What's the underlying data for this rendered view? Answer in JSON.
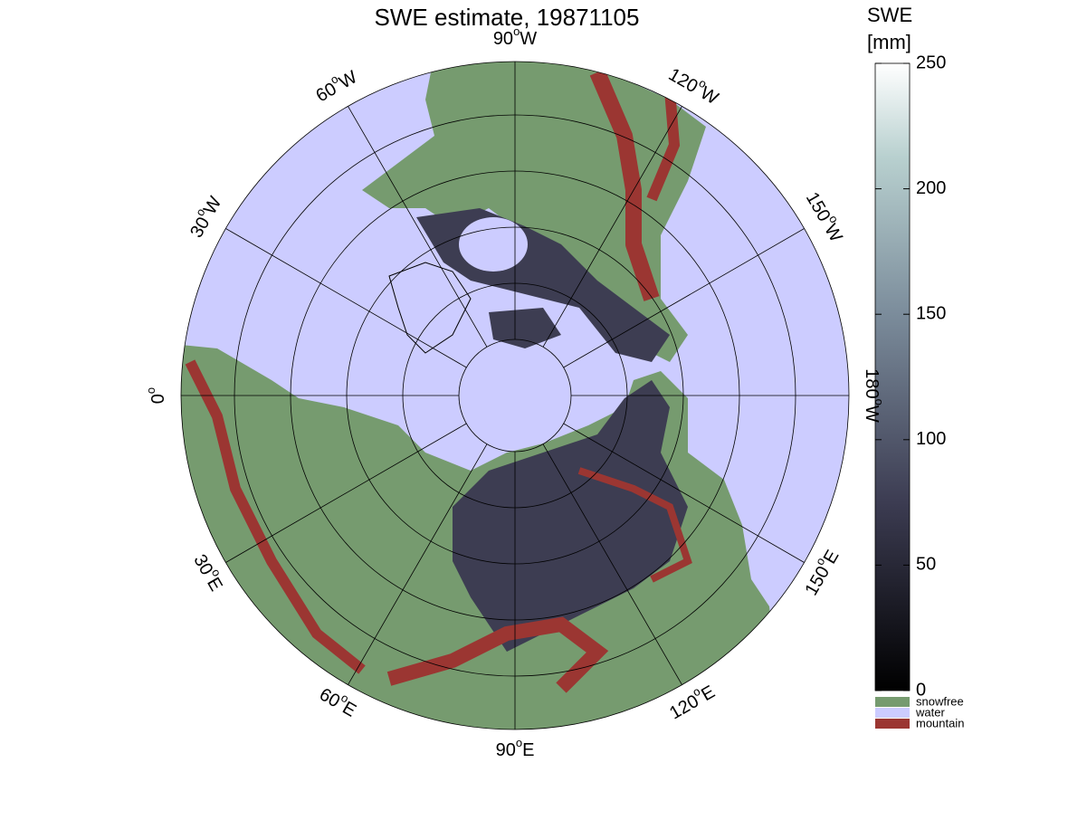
{
  "title": "SWE estimate, 19871105",
  "meridians": [
    {
      "deg": 0
    },
    {
      "deg": 30,
      "hemi": "E"
    },
    {
      "deg": 60,
      "hemi": "E"
    },
    {
      "deg": 90,
      "hemi": "E"
    },
    {
      "deg": 120,
      "hemi": "E"
    },
    {
      "deg": 150,
      "hemi": "E"
    },
    {
      "deg": 180,
      "hemi": "W"
    },
    {
      "deg": 150,
      "hemi": "W"
    },
    {
      "deg": 120,
      "hemi": "W"
    },
    {
      "deg": 90,
      "hemi": "W"
    },
    {
      "deg": 60,
      "hemi": "W"
    },
    {
      "deg": 30,
      "hemi": "W"
    }
  ],
  "degree_symbol": "o",
  "colorbar": {
    "label": [
      "SWE",
      "[mm]"
    ],
    "lim": [
      0,
      250
    ],
    "ticks": [
      0,
      50,
      100,
      150,
      200,
      250
    ]
  },
  "legend": [
    {
      "name": "snowfree",
      "color": "#769b6f"
    },
    {
      "name": "water",
      "color": "#ccccff"
    },
    {
      "name": "mountain",
      "color": "#9b3632"
    }
  ]
}
